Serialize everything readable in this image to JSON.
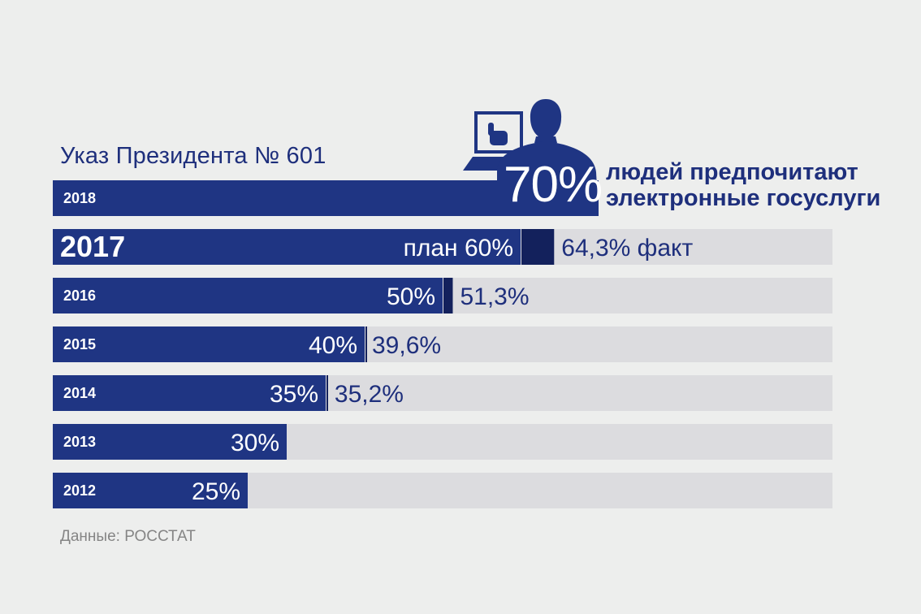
{
  "subtitle": "Указ Президента № 601",
  "source": "Данные: РОССТАТ",
  "highlight": {
    "value_text": "70%",
    "line1": "людей предпочитают",
    "line2": "электронные госуслуги"
  },
  "colors": {
    "background": "#edeeed",
    "plan": "#1f3583",
    "fact_excess": "#13215c",
    "track": "#dcdcdf",
    "text_dark": "#1e2f7c",
    "white": "#ffffff"
  },
  "icon": "person-at-computer-icon",
  "chart_data": {
    "type": "bar",
    "orientation": "horizontal",
    "xlim": [
      0,
      100
    ],
    "categories": [
      "2018",
      "2017",
      "2016",
      "2015",
      "2014",
      "2013",
      "2012"
    ],
    "series": [
      {
        "name": "план",
        "values": [
          70,
          60,
          50,
          40,
          35,
          30,
          25
        ]
      },
      {
        "name": "факт",
        "values": [
          null,
          64.3,
          51.3,
          39.6,
          35.2,
          null,
          null
        ]
      }
    ],
    "rows": [
      {
        "year": "2018",
        "plan": 70,
        "fact": null,
        "plan_label": "",
        "fact_label": ""
      },
      {
        "year": "2017",
        "plan": 60,
        "fact": 64.3,
        "plan_label": "план 60%",
        "fact_label": "64,3% факт"
      },
      {
        "year": "2016",
        "plan": 50,
        "fact": 51.3,
        "plan_label": "50%",
        "fact_label": "51,3%"
      },
      {
        "year": "2015",
        "plan": 40,
        "fact": 39.6,
        "plan_label": "40%",
        "fact_label": "39,6%"
      },
      {
        "year": "2014",
        "plan": 35,
        "fact": 35.2,
        "plan_label": "35%",
        "fact_label": "35,2%"
      },
      {
        "year": "2013",
        "plan": 30,
        "fact": null,
        "plan_label": "30%",
        "fact_label": ""
      },
      {
        "year": "2012",
        "plan": 25,
        "fact": null,
        "plan_label": "25%",
        "fact_label": ""
      }
    ]
  }
}
